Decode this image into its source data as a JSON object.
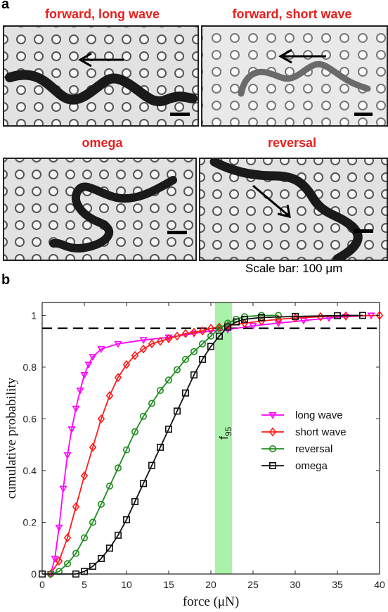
{
  "panel_a": {
    "letter": "a",
    "images": [
      {
        "title": "forward, long wave"
      },
      {
        "title": "forward, short wave"
      },
      {
        "title": "omega"
      },
      {
        "title": "reversal"
      }
    ],
    "scale_caption": "Scale bar: 100 μm"
  },
  "panel_b": {
    "letter": "b"
  },
  "chart_data": {
    "type": "line",
    "xlabel": "force (μN)",
    "ylabel": "cumulative probability",
    "xlim": [
      0,
      40
    ],
    "ylim": [
      0,
      1.05
    ],
    "xticks": [
      0,
      5,
      10,
      15,
      20,
      25,
      30,
      35,
      40
    ],
    "yticks": [
      0,
      0.2,
      0.4,
      0.6,
      0.8,
      1
    ],
    "ytick_labels": [
      "0",
      "0.2",
      "0.4",
      "0.6",
      "0.8",
      "1"
    ],
    "grid": false,
    "legend_position": "right",
    "reference_line": {
      "y": 0.95,
      "style": "dashed"
    },
    "band": {
      "x_range": [
        20.5,
        22.5
      ],
      "label_main": "f",
      "label_sub": "95",
      "color": "#a9f2a9"
    },
    "series": [
      {
        "name": "long wave",
        "color": "#ff00ff",
        "marker": "triangle-down",
        "points": [
          [
            1,
            0.0
          ],
          [
            1.5,
            0.06
          ],
          [
            2,
            0.18
          ],
          [
            2.5,
            0.33
          ],
          [
            3,
            0.46
          ],
          [
            3.5,
            0.56
          ],
          [
            4,
            0.64
          ],
          [
            4.5,
            0.71
          ],
          [
            5,
            0.77
          ],
          [
            5.5,
            0.81
          ],
          [
            6,
            0.84
          ],
          [
            7,
            0.87
          ],
          [
            9,
            0.89
          ],
          [
            12,
            0.905
          ],
          [
            15,
            0.915
          ],
          [
            18,
            0.93
          ],
          [
            20,
            0.94
          ],
          [
            22,
            0.945
          ],
          [
            25,
            0.96
          ],
          [
            28,
            0.97
          ],
          [
            31,
            0.98
          ],
          [
            34,
            0.99
          ],
          [
            36,
            0.995
          ],
          [
            39,
            1.0
          ]
        ]
      },
      {
        "name": "short wave",
        "color": "#ff1a1a",
        "marker": "diamond",
        "points": [
          [
            1,
            0.0
          ],
          [
            2,
            0.05
          ],
          [
            3,
            0.14
          ],
          [
            4,
            0.26
          ],
          [
            5,
            0.38
          ],
          [
            6,
            0.49
          ],
          [
            7,
            0.6
          ],
          [
            8,
            0.69
          ],
          [
            9,
            0.76
          ],
          [
            10,
            0.81
          ],
          [
            11,
            0.845
          ],
          [
            12,
            0.87
          ],
          [
            13,
            0.89
          ],
          [
            14,
            0.9
          ],
          [
            15,
            0.91
          ],
          [
            16,
            0.92
          ],
          [
            17,
            0.93
          ],
          [
            18,
            0.935
          ],
          [
            19,
            0.94
          ],
          [
            20,
            0.95
          ],
          [
            21,
            0.955
          ],
          [
            22,
            0.96
          ],
          [
            24,
            0.97
          ],
          [
            26,
            0.978
          ],
          [
            28,
            0.985
          ],
          [
            30,
            0.99
          ],
          [
            33,
            0.995
          ],
          [
            36,
            0.998
          ],
          [
            40,
            1.0
          ]
        ]
      },
      {
        "name": "reversal",
        "color": "#1e8c1e",
        "marker": "circle",
        "points": [
          [
            1,
            0.0
          ],
          [
            2,
            0.01
          ],
          [
            3,
            0.04
          ],
          [
            4,
            0.08
          ],
          [
            5,
            0.14
          ],
          [
            6,
            0.2
          ],
          [
            7,
            0.27
          ],
          [
            8,
            0.34
          ],
          [
            9,
            0.41
          ],
          [
            10,
            0.48
          ],
          [
            11,
            0.55
          ],
          [
            12,
            0.61
          ],
          [
            13,
            0.66
          ],
          [
            14,
            0.71
          ],
          [
            15,
            0.75
          ],
          [
            16,
            0.79
          ],
          [
            17,
            0.83
          ],
          [
            18,
            0.86
          ],
          [
            19,
            0.89
          ],
          [
            20,
            0.92
          ],
          [
            21,
            0.95
          ],
          [
            22,
            0.97
          ],
          [
            23,
            0.985
          ],
          [
            24,
            0.995
          ],
          [
            26,
            1.0
          ],
          [
            28,
            1.0
          ]
        ]
      },
      {
        "name": "omega",
        "color": "#111111",
        "marker": "square",
        "points": [
          [
            0,
            0.0
          ],
          [
            4,
            0.0
          ],
          [
            5,
            0.01
          ],
          [
            6,
            0.03
          ],
          [
            7,
            0.06
          ],
          [
            8,
            0.1
          ],
          [
            9,
            0.15
          ],
          [
            10,
            0.21
          ],
          [
            11,
            0.28
          ],
          [
            12,
            0.35
          ],
          [
            13,
            0.42
          ],
          [
            14,
            0.49
          ],
          [
            15,
            0.56
          ],
          [
            16,
            0.63
          ],
          [
            17,
            0.7
          ],
          [
            18,
            0.77
          ],
          [
            19,
            0.83
          ],
          [
            20,
            0.88
          ],
          [
            21,
            0.92
          ],
          [
            22,
            0.955
          ],
          [
            23,
            0.975
          ],
          [
            24,
            0.985
          ],
          [
            26,
            0.992
          ],
          [
            30,
            0.996
          ],
          [
            35,
            0.999
          ],
          [
            38,
            1.0
          ]
        ]
      }
    ]
  }
}
